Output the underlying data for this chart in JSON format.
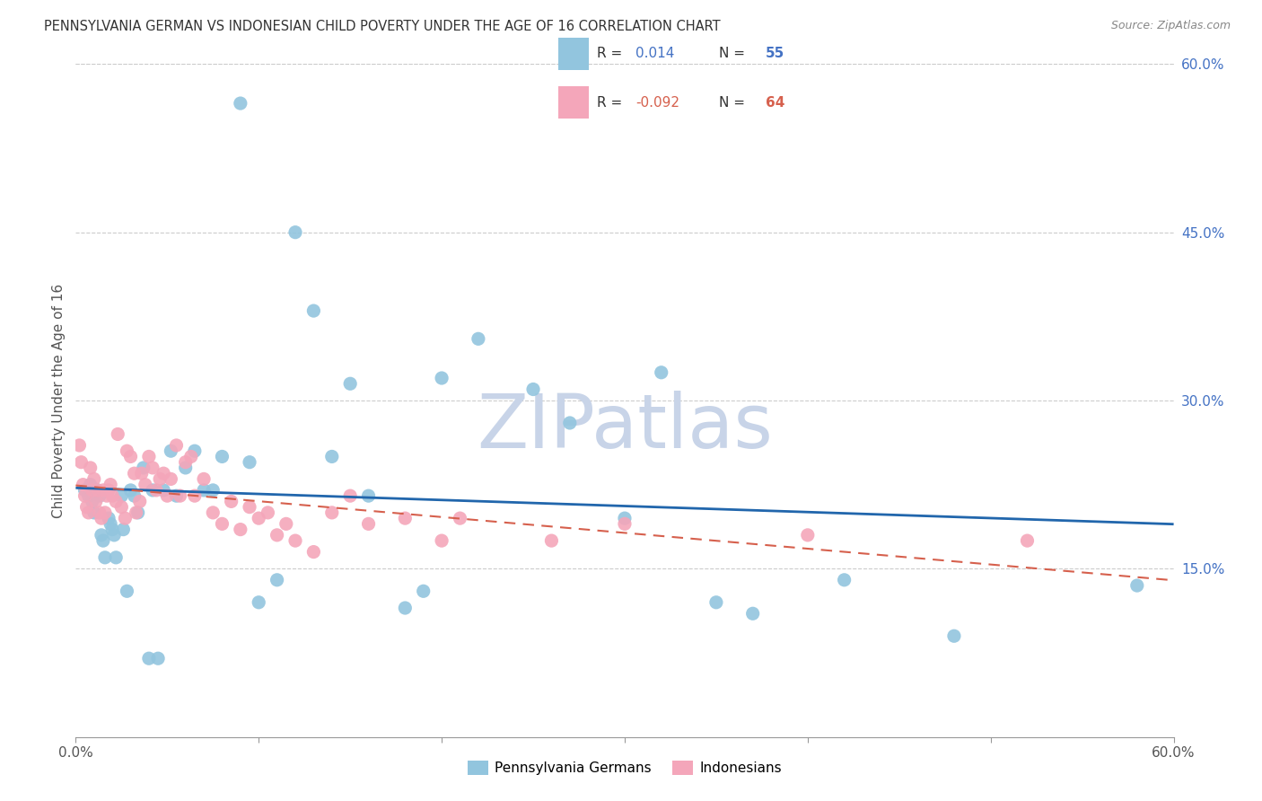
{
  "title": "PENNSYLVANIA GERMAN VS INDONESIAN CHILD POVERTY UNDER THE AGE OF 16 CORRELATION CHART",
  "source": "Source: ZipAtlas.com",
  "ylabel": "Child Poverty Under the Age of 16",
  "xlim": [
    0.0,
    0.6
  ],
  "ylim": [
    0.0,
    0.6
  ],
  "yticks_right": [
    0.15,
    0.3,
    0.45,
    0.6
  ],
  "ytick_right_labels": [
    "15.0%",
    "30.0%",
    "45.0%",
    "60.0%"
  ],
  "blue_color": "#92c5de",
  "pink_color": "#f4a6ba",
  "trend_blue": "#2166ac",
  "trend_pink": "#d6604d",
  "watermark_color": "#c8d4e8",
  "pa_german_x": [
    0.005,
    0.007,
    0.008,
    0.009,
    0.01,
    0.012,
    0.013,
    0.014,
    0.015,
    0.016,
    0.018,
    0.019,
    0.02,
    0.021,
    0.022,
    0.025,
    0.026,
    0.028,
    0.03,
    0.032,
    0.034,
    0.037,
    0.04,
    0.042,
    0.045,
    0.048,
    0.052,
    0.055,
    0.06,
    0.065,
    0.07,
    0.075,
    0.08,
    0.09,
    0.095,
    0.1,
    0.11,
    0.12,
    0.13,
    0.14,
    0.15,
    0.16,
    0.18,
    0.19,
    0.2,
    0.22,
    0.25,
    0.27,
    0.3,
    0.32,
    0.35,
    0.37,
    0.42,
    0.48,
    0.58
  ],
  "pa_german_y": [
    0.22,
    0.215,
    0.225,
    0.21,
    0.2,
    0.22,
    0.215,
    0.18,
    0.175,
    0.16,
    0.195,
    0.19,
    0.185,
    0.18,
    0.16,
    0.215,
    0.185,
    0.13,
    0.22,
    0.215,
    0.2,
    0.24,
    0.07,
    0.22,
    0.07,
    0.22,
    0.255,
    0.215,
    0.24,
    0.255,
    0.22,
    0.22,
    0.25,
    0.565,
    0.245,
    0.12,
    0.14,
    0.45,
    0.38,
    0.25,
    0.315,
    0.215,
    0.115,
    0.13,
    0.32,
    0.355,
    0.31,
    0.28,
    0.195,
    0.325,
    0.12,
    0.11,
    0.14,
    0.09,
    0.135
  ],
  "indonesian_x": [
    0.002,
    0.003,
    0.004,
    0.005,
    0.006,
    0.007,
    0.008,
    0.009,
    0.01,
    0.011,
    0.012,
    0.013,
    0.014,
    0.015,
    0.016,
    0.017,
    0.018,
    0.019,
    0.02,
    0.022,
    0.023,
    0.025,
    0.027,
    0.028,
    0.03,
    0.032,
    0.033,
    0.035,
    0.036,
    0.038,
    0.04,
    0.042,
    0.044,
    0.046,
    0.048,
    0.05,
    0.052,
    0.055,
    0.057,
    0.06,
    0.063,
    0.065,
    0.07,
    0.075,
    0.08,
    0.085,
    0.09,
    0.095,
    0.1,
    0.105,
    0.11,
    0.115,
    0.12,
    0.13,
    0.14,
    0.15,
    0.16,
    0.18,
    0.2,
    0.21,
    0.26,
    0.3,
    0.4,
    0.52
  ],
  "indonesian_y": [
    0.26,
    0.245,
    0.225,
    0.215,
    0.205,
    0.2,
    0.24,
    0.22,
    0.23,
    0.21,
    0.22,
    0.2,
    0.195,
    0.22,
    0.2,
    0.215,
    0.22,
    0.225,
    0.215,
    0.21,
    0.27,
    0.205,
    0.195,
    0.255,
    0.25,
    0.235,
    0.2,
    0.21,
    0.235,
    0.225,
    0.25,
    0.24,
    0.22,
    0.23,
    0.235,
    0.215,
    0.23,
    0.26,
    0.215,
    0.245,
    0.25,
    0.215,
    0.23,
    0.2,
    0.19,
    0.21,
    0.185,
    0.205,
    0.195,
    0.2,
    0.18,
    0.19,
    0.175,
    0.165,
    0.2,
    0.215,
    0.19,
    0.195,
    0.175,
    0.195,
    0.175,
    0.19,
    0.18,
    0.175
  ]
}
